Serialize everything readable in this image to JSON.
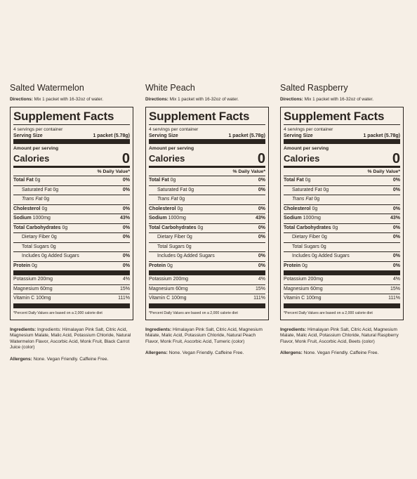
{
  "labels": {
    "directions_label": "Directions:",
    "directions_text": "Mix 1 packet with 16-32oz of water.",
    "panel_title": "Supplement Facts",
    "servings_per_container": "4 servings per container",
    "serving_size_label": "Serving Size",
    "serving_size_value": "1 packet (5.78g)",
    "amount_per_serving": "Amount per serving",
    "calories_label": "Calories",
    "calories_value": "0",
    "daily_value_header": "% Daily Value*",
    "footnote": "*Percent Daily Values are based on a 2,000 calorie diet",
    "ingredients_label": "Ingredients:",
    "allergens_label": "Allergens:",
    "allergens_text": "None. Vegan Friendly. Caffeine Free."
  },
  "nutrients": {
    "total_fat": {
      "name": "Total Fat",
      "amount": "0g",
      "dv": "0%"
    },
    "saturated_fat": {
      "name": "Saturated Fat",
      "amount": "0g",
      "dv": "0%"
    },
    "trans_fat_label": "Trans Fat",
    "trans_fat_amount": "0g",
    "cholesterol": {
      "name": "Cholesterol",
      "amount": "0g",
      "dv": "0%"
    },
    "sodium": {
      "name": "Sodium",
      "amount": "1000mg",
      "dv": "43%"
    },
    "total_carbs": {
      "name": "Total Carbohydrates",
      "amount": "0g",
      "dv": "0%"
    },
    "dietary_fiber": {
      "name": "Dietary Fiber",
      "amount": "0g",
      "dv": "0%"
    },
    "total_sugars": "Total Sugars 0g",
    "added_sugars": {
      "text": "Includes 0g Added Sugars",
      "dv": "0%"
    },
    "protein": {
      "name": "Protein",
      "amount": "0g",
      "dv": "0%"
    },
    "potassium": {
      "text": "Potassium 200mg",
      "dv": "4%"
    },
    "magnesium": {
      "text": "Magnesium 60mg",
      "dv": "15%"
    },
    "vitamin_c": {
      "text": "Vitamin C 100mg",
      "dv": "111%"
    }
  },
  "products": [
    {
      "flavor": "Salted Watermelon",
      "ingredients_prefix": "Ingredients:",
      "ingredients": "Himalayan Pink Salt, Citric Acid, Magnesium Malate, Malic Acid, Potassium Chloride, Natural Watermelon Flavor, Ascorbic Acid, Monk Fruit, Black Carrot Juice (color)"
    },
    {
      "flavor": "White Peach",
      "ingredients_prefix": "",
      "ingredients": "Himalayan Pink Salt, Citric Acid, Magnesium Malate, Malic Acid, Potassium Chloride, Natural Peach Flavor, Monk Fruit, Ascorbic Acid, Tumeric (color)"
    },
    {
      "flavor": "Salted Raspberry",
      "ingredients_prefix": "",
      "ingredients": "Himalayan Pink Salt, Citric Acid, Magnesium Malate, Malic Acid, Potassium Chloride, Natural Raspberry Flavor, Monk Fruit, Ascorbic Acid, Beets (color)"
    }
  ]
}
